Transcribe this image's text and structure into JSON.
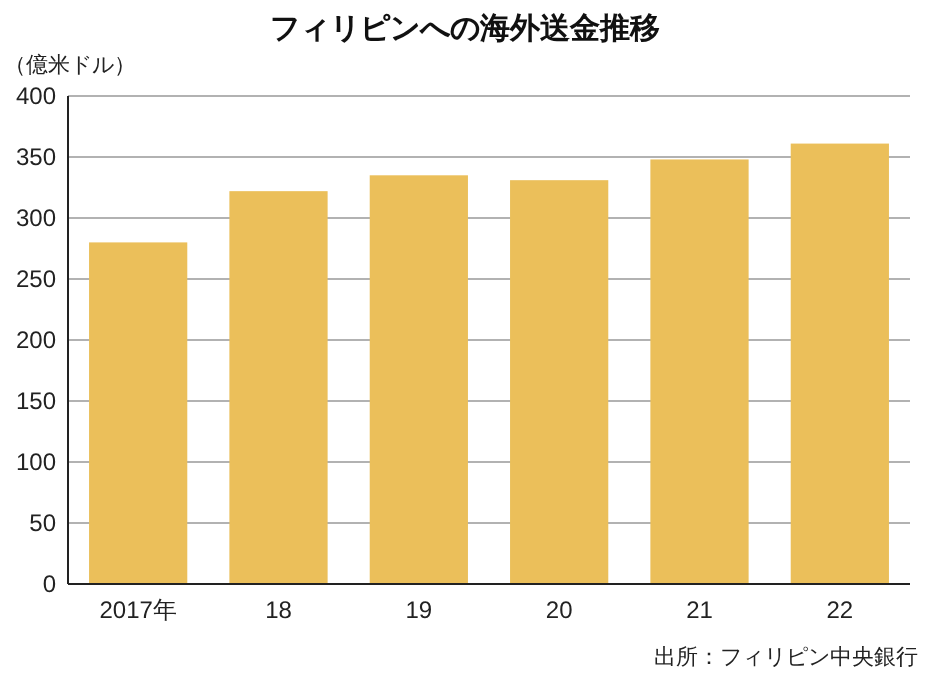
{
  "chart_data": {
    "type": "bar",
    "title": "フィリピンへの海外送金推移",
    "ylabel": "（億米ドル）",
    "annotations": [
      "出所：フィリピン中央銀行"
    ],
    "categories": [
      "2017年",
      "18",
      "19",
      "20",
      "21",
      "22"
    ],
    "values": [
      280,
      322,
      335,
      331,
      348,
      361
    ],
    "color": "#ebbf5a",
    "ylim": [
      0,
      400
    ],
    "yticks": [
      0,
      50,
      100,
      150,
      200,
      250,
      300,
      350,
      400
    ],
    "grid": "y"
  }
}
